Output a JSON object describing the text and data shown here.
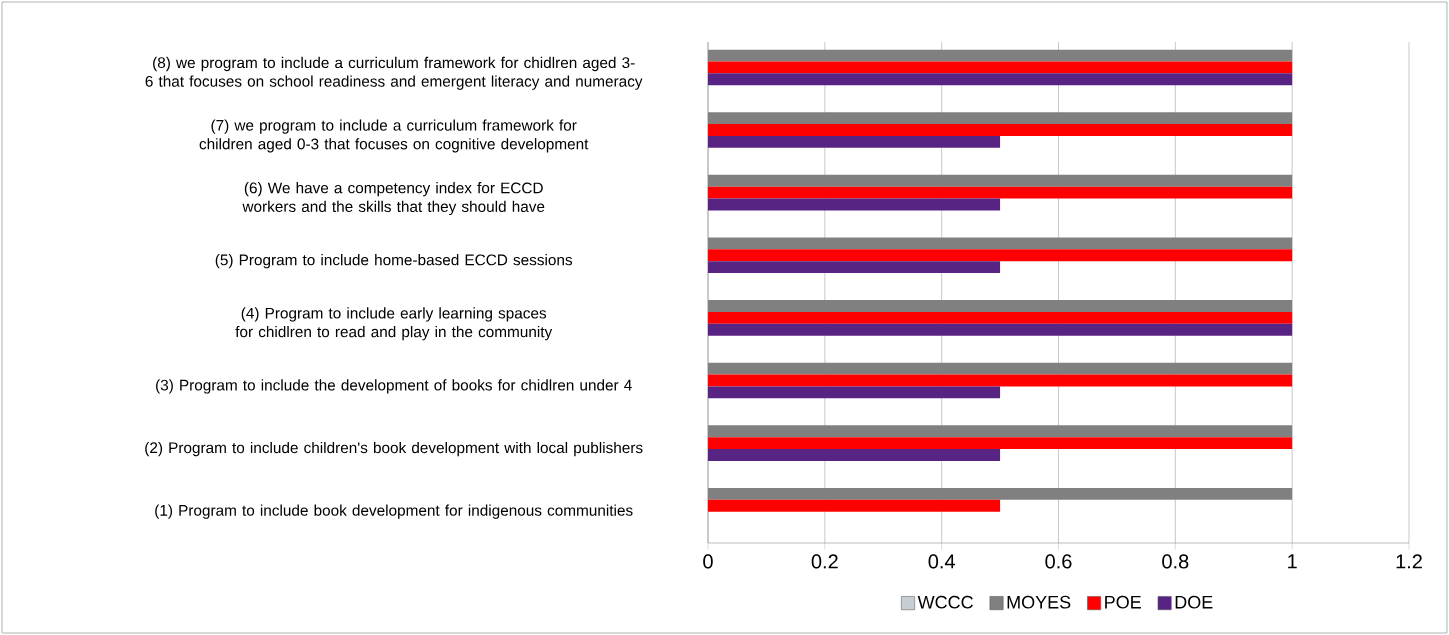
{
  "chart_data": {
    "type": "bar",
    "orientation": "horizontal",
    "categories": [
      "(8) we program to include a curriculum framework for chidlren aged 3-6 that focuses on school readiness and emergent literacy and numeracy",
      "(7) we program to include a curriculum framework for children aged 0-3 that focuses on cognitive development",
      "(6) We have a competency index for ECCD workers and the skills that they should have",
      "(5) Program to include home-based ECCD sessions",
      "(4) Program to include early learning spaces for chidlren to read and play in the community",
      "(3) Program to include the development of books for chidlren under 4",
      "(2) Program to include children's book development with local publishers",
      "(1) Program to include book development for indigenous communities"
    ],
    "series": [
      {
        "name": "WCCC",
        "color": "#c6ced4",
        "values": [
          0,
          0,
          0,
          0,
          0,
          0,
          0,
          0
        ]
      },
      {
        "name": "MOYES",
        "color": "#808080",
        "values": [
          1,
          1,
          1,
          1,
          1,
          1,
          1,
          1
        ]
      },
      {
        "name": "POE",
        "color": "#ff0000",
        "values": [
          1,
          1,
          1,
          1,
          1,
          1,
          1,
          0.5
        ]
      },
      {
        "name": "DOE",
        "color": "#582483",
        "values": [
          1,
          0.5,
          0.5,
          0.5,
          1,
          0.5,
          0.5,
          0
        ]
      }
    ],
    "xlim": [
      0,
      1.2
    ],
    "xticks": [
      0,
      0.2,
      0.4,
      0.6,
      0.8,
      1,
      1.2
    ],
    "grid": "x",
    "legend": "bottom"
  }
}
